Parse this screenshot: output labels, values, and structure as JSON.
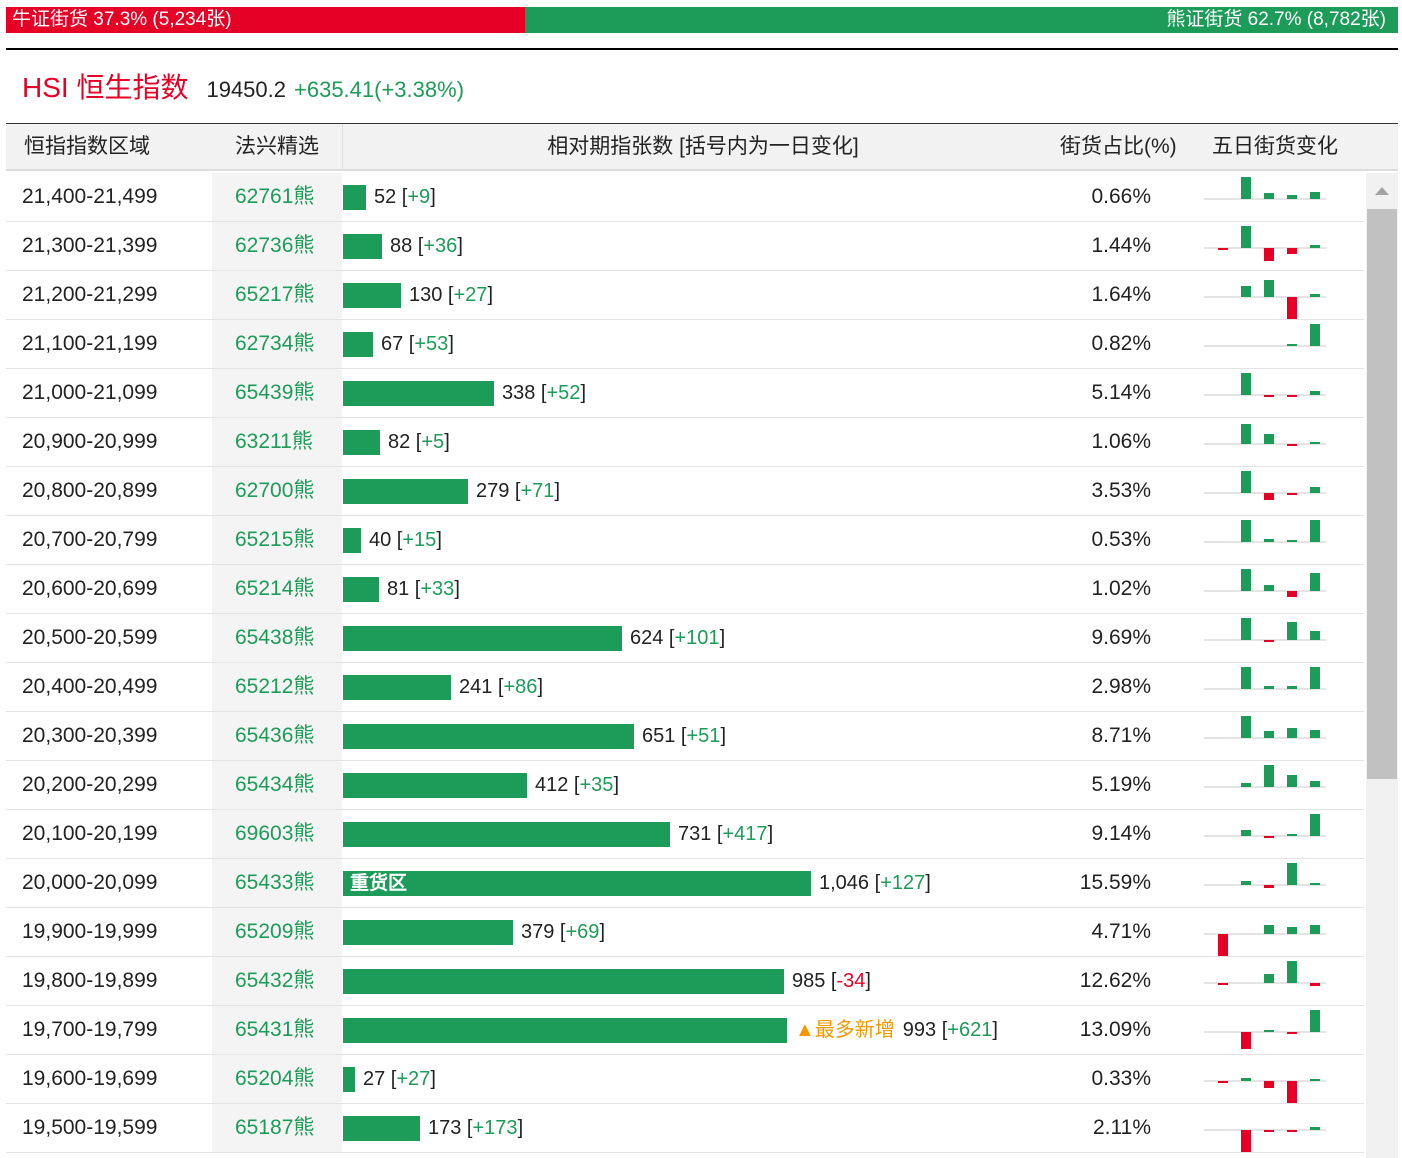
{
  "ratio": {
    "bull_label": "牛证街货 37.3% (5,234张)",
    "bear_label": "熊证街货 62.7% (8,782张)",
    "bull_share": 0.373,
    "bull_color": "#e60026",
    "bear_color": "#1d9b58"
  },
  "index": {
    "name": "HSI 恒生指数",
    "price": "19450.2",
    "change": "+635.41(+3.38%)"
  },
  "headers": {
    "range": "恒指指数区域",
    "pick": "法兴精选",
    "relative": "相对期指张数 [括号内为一日变化]",
    "share": "街货占比(%)",
    "five_day": "五日街货变化"
  },
  "bar_scale_max": 1046,
  "colors": {
    "up": "#1d9b58",
    "down": "#e60026",
    "tag": "#f39800"
  },
  "rows": [
    {
      "range": "21,400-21,499",
      "pick": "62761熊",
      "qty": 52,
      "qty_text": "52",
      "chg": "+9",
      "share": "0.66%",
      "spark": [
        0,
        2,
        0.5,
        0.4,
        0.6
      ]
    },
    {
      "range": "21,300-21,399",
      "pick": "62736熊",
      "qty": 88,
      "qty_text": "88",
      "chg": "+36",
      "share": "1.44%",
      "spark": [
        -0.2,
        2,
        -1.2,
        -0.5,
        0.3
      ]
    },
    {
      "range": "21,200-21,299",
      "pick": "65217熊",
      "qty": 130,
      "qty_text": "130",
      "chg": "+27",
      "share": "1.64%",
      "spark": [
        0,
        1,
        1.5,
        -2,
        0.3
      ]
    },
    {
      "range": "21,100-21,199",
      "pick": "62734熊",
      "qty": 67,
      "qty_text": "67",
      "chg": "+53",
      "share": "0.82%",
      "spark": [
        0,
        0,
        0,
        0.1,
        2
      ]
    },
    {
      "range": "21,000-21,099",
      "pick": "65439熊",
      "qty": 338,
      "qty_text": "338",
      "chg": "+52",
      "share": "5.14%",
      "spark": [
        0,
        2,
        -0.1,
        -0.1,
        0.4
      ]
    },
    {
      "range": "20,900-20,999",
      "pick": "63211熊",
      "qty": 82,
      "qty_text": "82",
      "chg": "+5",
      "share": "1.06%",
      "spark": [
        0,
        1.8,
        0.9,
        -0.1,
        0.1
      ]
    },
    {
      "range": "20,800-20,899",
      "pick": "62700熊",
      "qty": 279,
      "qty_text": "279",
      "chg": "+71",
      "share": "3.53%",
      "spark": [
        0,
        2,
        -0.6,
        -0.2,
        0.5
      ]
    },
    {
      "range": "20,700-20,799",
      "pick": "65215熊",
      "qty": 40,
      "qty_text": "40",
      "chg": "+15",
      "share": "0.53%",
      "spark": [
        0,
        2,
        0.3,
        0.1,
        2
      ]
    },
    {
      "range": "20,600-20,699",
      "pick": "65214熊",
      "qty": 81,
      "qty_text": "81",
      "chg": "+33",
      "share": "1.02%",
      "spark": [
        0,
        2,
        0.5,
        -0.5,
        1.6
      ]
    },
    {
      "range": "20,500-20,599",
      "pick": "65438熊",
      "qty": 624,
      "qty_text": "624",
      "chg": "+101",
      "share": "9.69%",
      "spark": [
        0,
        2,
        -0.2,
        1.6,
        0.8
      ]
    },
    {
      "range": "20,400-20,499",
      "pick": "65212熊",
      "qty": 241,
      "qty_text": "241",
      "chg": "+86",
      "share": "2.98%",
      "spark": [
        0,
        2,
        0.3,
        0.3,
        2
      ]
    },
    {
      "range": "20,300-20,399",
      "pick": "65436熊",
      "qty": 651,
      "qty_text": "651",
      "chg": "+51",
      "share": "8.71%",
      "spark": [
        0,
        2,
        0.6,
        0.9,
        0.7
      ]
    },
    {
      "range": "20,200-20,299",
      "pick": "65434熊",
      "qty": 412,
      "qty_text": "412",
      "chg": "+35",
      "share": "5.19%",
      "spark": [
        0,
        0.4,
        2,
        1.1,
        0.5
      ]
    },
    {
      "range": "20,100-20,199",
      "pick": "69603熊",
      "qty": 731,
      "qty_text": "731",
      "chg": "+417",
      "share": "9.14%",
      "spark": [
        0,
        0.5,
        -0.2,
        0.1,
        2
      ]
    },
    {
      "range": "20,000-20,099",
      "pick": "65433熊",
      "qty": 1046,
      "qty_text": "1,046",
      "chg": "+127",
      "share": "15.59%",
      "tag": "重货区",
      "spark": [
        0,
        0.4,
        -0.3,
        2,
        0.1
      ]
    },
    {
      "range": "19,900-19,999",
      "pick": "65209熊",
      "qty": 379,
      "qty_text": "379",
      "chg": "+69",
      "share": "4.71%",
      "spark": [
        -2,
        0,
        0.8,
        0.6,
        0.8
      ]
    },
    {
      "range": "19,800-19,899",
      "pick": "65432熊",
      "qty": 985,
      "qty_text": "985",
      "chg": "-34",
      "share": "12.62%",
      "spark": [
        -0.2,
        0,
        0.8,
        2,
        -0.3
      ]
    },
    {
      "range": "19,700-19,799",
      "pick": "65431熊",
      "qty": 993,
      "qty_text": "993",
      "chg": "+621",
      "share": "13.09%",
      "note": "▲最多新增",
      "spark": [
        0,
        -1.5,
        0.2,
        -0.1,
        2
      ]
    },
    {
      "range": "19,600-19,699",
      "pick": "65204熊",
      "qty": 27,
      "qty_text": "27",
      "chg": "+27",
      "share": "0.33%",
      "spark": [
        -0.2,
        0.3,
        -0.6,
        -2,
        0.2
      ]
    },
    {
      "range": "19,500-19,599",
      "pick": "65187熊",
      "qty": 173,
      "qty_text": "173",
      "chg": "+173",
      "share": "2.11%",
      "spark": [
        0,
        -2,
        -0.2,
        -0.1,
        0.3
      ]
    }
  ]
}
